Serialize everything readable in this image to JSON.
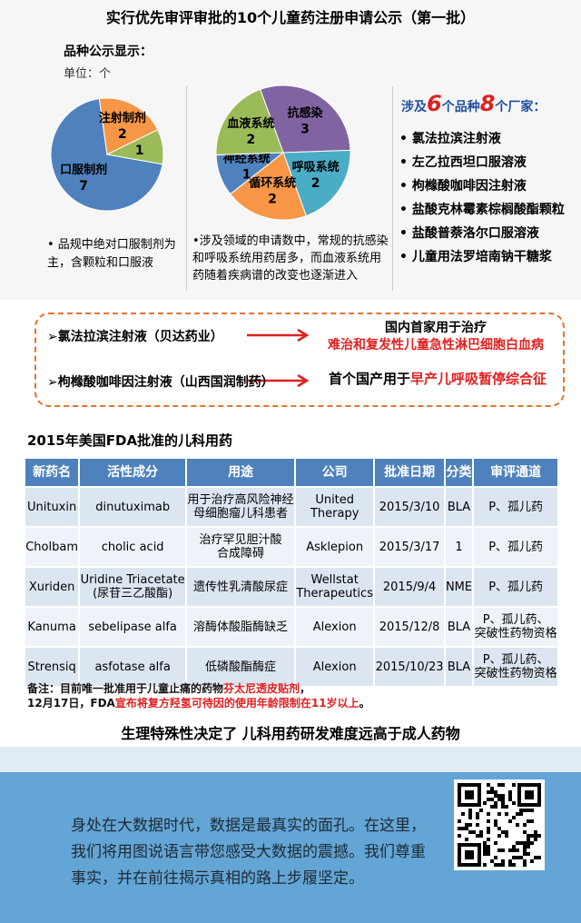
{
  "header": {
    "title": "实行优先审评审批的10个儿童药注册申请公示（第一批）"
  },
  "chart_data": [
    {
      "type": "pie",
      "title": "品种公示显示：",
      "subtitle": "单位：个",
      "categories": [
        "口服制剂",
        "注射制剂",
        null
      ],
      "values": [
        7,
        2,
        1
      ],
      "colors": [
        "#4f81bd",
        "#f79646",
        "#9bbb59"
      ],
      "note": "• 品规中绝对口服制剂为主，含颗粒和口服液"
    },
    {
      "type": "pie",
      "categories": [
        "抗感染",
        "呼吸系统",
        "循环系统",
        "神经系统",
        "血液系统"
      ],
      "values": [
        3,
        2,
        2,
        1,
        2
      ],
      "colors": [
        "#8064a2",
        "#4bacc6",
        "#f79646",
        "#4f81bd",
        "#9bbb59"
      ],
      "note": "•涉及领域的申请数中，常规的抗感染和呼吸系统用药居多，而血液系统用药随着疾病谱的改变也逐渐进入"
    }
  ],
  "drug_list": {
    "heading": {
      "prefix": "涉及",
      "n1": "6",
      "mid": "个品种",
      "n2": "8",
      "suffix": "个厂家："
    },
    "items": [
      "氯法拉滨注射液",
      "左乙拉西坦口服溶液",
      "枸橼酸咖啡因注射液",
      "盐酸克林霉素棕榈酸酯颗粒",
      "盐酸普萘洛尔口服溶液",
      "儿童用法罗培南钠干糖浆"
    ]
  },
  "highlights": [
    {
      "drug": "➢氯法拉滨注射液（贝达药业）",
      "line1": "国内首家用于治疗",
      "line2": "难治和复发性儿童急性淋巴细胞白血病"
    },
    {
      "drug": "➢枸橼酸咖啡因注射液（山西国润制药）",
      "text": "首个国产用于",
      "red": "早产儿呼吸暂停综合征"
    }
  ],
  "table": {
    "title": "2015年美国FDA批准的儿科用药",
    "columns": [
      "新药名",
      "活性成分",
      "用途",
      "公司",
      "批准日期",
      "分类",
      "审评通道"
    ],
    "rows": [
      [
        "Unituxin",
        "dinutuximab",
        "用于治疗高风险神经\n母细胞瘤儿科患者",
        "United\nTherapy",
        "2015/3/10",
        "BLA",
        "P、孤儿药"
      ],
      [
        "Cholbam",
        "cholic acid",
        "治疗罕见胆汁酸\n合成障碍",
        "Asklepion",
        "2015/3/17",
        "1",
        "P、孤儿药"
      ],
      [
        "Xuriden",
        "Uridine Triacetate\n(尿苷三乙酸酯)",
        "遗传性乳清酸尿症",
        "Wellstat\nTherapeutics",
        "2015/9/4",
        "NME",
        "P、孤儿药"
      ],
      [
        "Kanuma",
        "sebelipase alfa",
        "溶酶体酸脂酶缺乏",
        "Alexion",
        "2015/12/8",
        "BLA",
        "P、孤儿药、\n突破性药物资格"
      ],
      [
        "Strensiq",
        "asfotase alfa",
        "低磷酸酯酶症",
        "Alexion",
        "2015/10/23",
        "BLA",
        "P、孤儿药、\n突破性药物资格"
      ]
    ]
  },
  "notes": [
    [
      {
        "text": "备注：目前唯一批准用于儿童止痛的药物",
        "color": "#111111"
      },
      {
        "text": "芬太尼透皮贴剂",
        "color": "#e02020"
      },
      {
        "text": "，",
        "color": "#111111"
      }
    ],
    [
      {
        "text": "12月17日，FDA",
        "color": "#111111"
      },
      {
        "text": "宣布将复方羟氢可待因的使用年龄限制在11岁以上",
        "color": "#e02020"
      },
      {
        "text": "。",
        "color": "#111111"
      }
    ]
  ],
  "tagline": "生理特殊性决定了 儿科用药研发难度远高于成人药物",
  "footer": {
    "text": "身处在大数据时代，数据是最真实的面孔。在这里，我们将用图说语言带您感受大数据的震撼。我们尊重事实，并在前往揭示真相的路上步履坚定。"
  }
}
